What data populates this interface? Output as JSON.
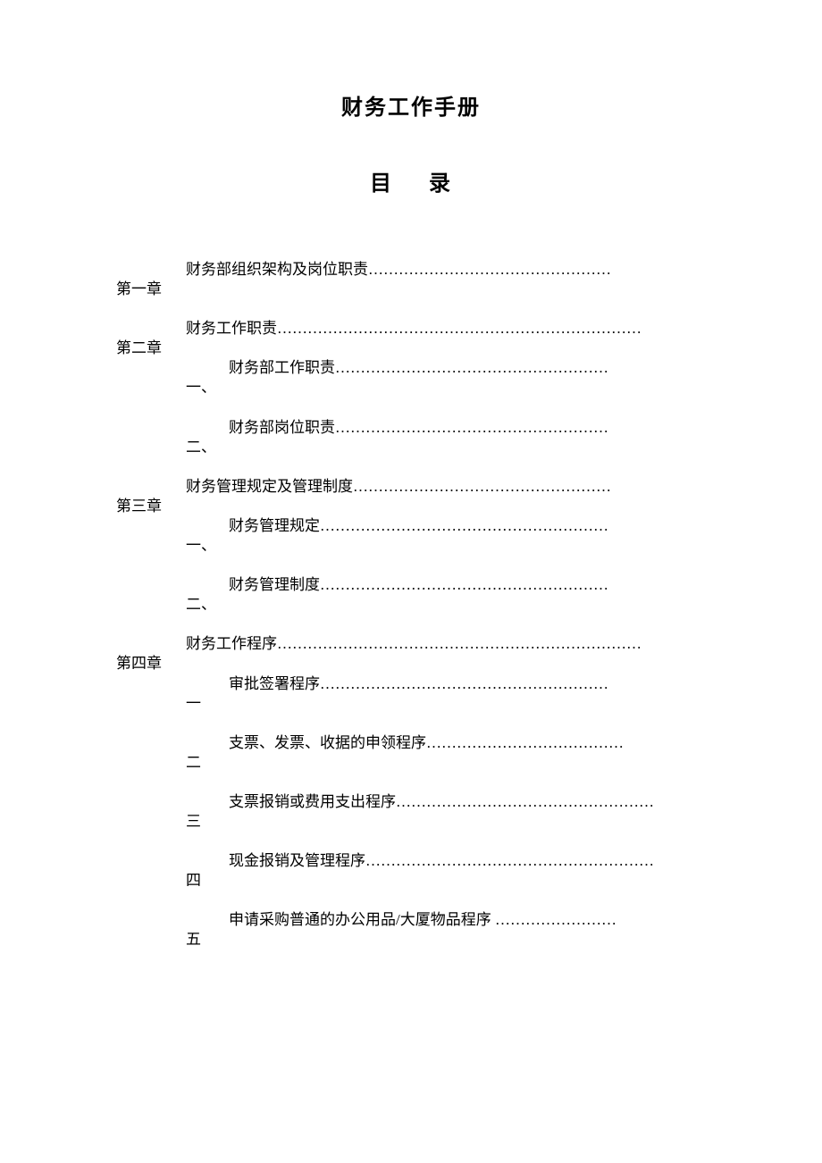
{
  "document": {
    "title": "财务工作手册",
    "toc_heading_char1": "目",
    "toc_heading_char2": "录",
    "text_color": "#000000",
    "background_color": "#ffffff",
    "title_fontsize": 24,
    "body_fontsize": 17,
    "line_height": 2.6
  },
  "chapters": [
    {
      "label": "第一章",
      "text": "财务部组织架构及岗位职责…………………………………………",
      "subs": []
    },
    {
      "label": "第二章",
      "text": "财务工作职责………………………………………………………………",
      "subs": [
        {
          "label": "一、",
          "text": "财务部工作职责………………………………………………"
        },
        {
          "label": "二、",
          "text": "财务部岗位职责………………………………………………"
        }
      ]
    },
    {
      "label": "第三章",
      "text": "财务管理规定及管理制度……………………………………………",
      "subs": [
        {
          "label": "一、",
          "text": "财务管理规定…………………………………………………"
        },
        {
          "label": "二、",
          "text": "财务管理制度…………………………………………………"
        }
      ]
    },
    {
      "label": "第四章",
      "text": "财务工作程序………………………………………………………………",
      "subs": [
        {
          "label": "一",
          "text": "审批签署程序…………………………………………………"
        },
        {
          "label": "二",
          "text": "支票、发票、收据的申领程序…………………………………"
        },
        {
          "label": "三",
          "text": "支票报销或费用支出程序……………………………………………"
        },
        {
          "label": "四",
          "text": "现金报销及管理程序…………………………………………………"
        },
        {
          "label": "五",
          "text": "申请采购普通的办公用品/大厦物品程序  ……………………"
        }
      ]
    }
  ]
}
